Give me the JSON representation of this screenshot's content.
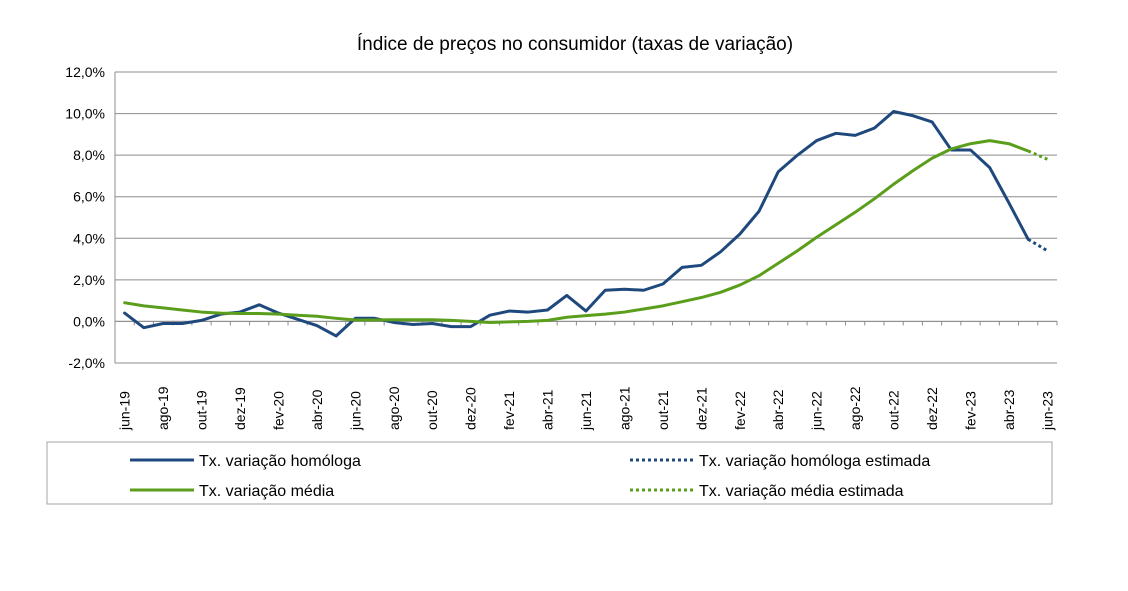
{
  "chart_data": {
    "type": "line",
    "title": "Índice de preços no consumidor  (taxas  de variação)",
    "xlabel": "",
    "ylabel": "",
    "ylim": [
      -2.0,
      12.0
    ],
    "y_ticks": [
      "-2,0%",
      "0,0%",
      "2,0%",
      "4,0%",
      "6,0%",
      "8,0%",
      "10,0%",
      "12,0%"
    ],
    "grid": "horizontal",
    "legend_position": "bottom",
    "x": [
      "jun-19",
      "jul-19",
      "ago-19",
      "set-19",
      "out-19",
      "nov-19",
      "dez-19",
      "jan-20",
      "fev-20",
      "mar-20",
      "abr-20",
      "mai-20",
      "jun-20",
      "jul-20",
      "ago-20",
      "set-20",
      "out-20",
      "nov-20",
      "dez-20",
      "jan-21",
      "fev-21",
      "mar-21",
      "abr-21",
      "mai-21",
      "jun-21",
      "jul-21",
      "ago-21",
      "set-21",
      "out-21",
      "nov-21",
      "dez-21",
      "jan-22",
      "fev-22",
      "mar-22",
      "abr-22",
      "mai-22",
      "jun-22",
      "jul-22",
      "ago-22",
      "set-22",
      "out-22",
      "nov-22",
      "dez-22",
      "jan-23",
      "fev-23",
      "mar-23",
      "abr-23",
      "mai-23",
      "jun-23"
    ],
    "x_tick_labels": [
      "jun-19",
      "ago-19",
      "out-19",
      "dez-19",
      "fev-20",
      "abr-20",
      "jun-20",
      "ago-20",
      "out-20",
      "dez-20",
      "fev-21",
      "abr-21",
      "jun-21",
      "ago-21",
      "out-21",
      "dez-21",
      "fev-22",
      "abr-22",
      "jun-22",
      "ago-22",
      "out-22",
      "dez-22",
      "fev-23",
      "abr-23",
      "jun-23"
    ],
    "series": [
      {
        "name": "Tx. variação homóloga",
        "color": "#1f497d",
        "style": "solid",
        "values": [
          0.4,
          -0.3,
          -0.1,
          -0.1,
          0.05,
          0.35,
          0.45,
          0.8,
          0.4,
          0.1,
          -0.2,
          -0.7,
          0.15,
          0.15,
          -0.05,
          -0.15,
          -0.1,
          -0.25,
          -0.25,
          0.3,
          0.5,
          0.45,
          0.55,
          1.25,
          0.5,
          1.5,
          1.55,
          1.5,
          1.8,
          2.6,
          2.7,
          3.35,
          4.2,
          5.3,
          7.2,
          8.0,
          8.7,
          9.05,
          8.95,
          9.3,
          10.1,
          9.9,
          9.6,
          8.25,
          8.25,
          7.4,
          5.7,
          3.95,
          null
        ]
      },
      {
        "name": "Tx. variação homóloga estimada",
        "color": "#1f497d",
        "style": "dotted",
        "values": [
          null,
          null,
          null,
          null,
          null,
          null,
          null,
          null,
          null,
          null,
          null,
          null,
          null,
          null,
          null,
          null,
          null,
          null,
          null,
          null,
          null,
          null,
          null,
          null,
          null,
          null,
          null,
          null,
          null,
          null,
          null,
          null,
          null,
          null,
          null,
          null,
          null,
          null,
          null,
          null,
          null,
          null,
          null,
          null,
          null,
          null,
          null,
          3.95,
          3.4
        ]
      },
      {
        "name": "Tx. variação média",
        "color": "#5b9e1c",
        "style": "solid",
        "values": [
          0.9,
          0.75,
          0.65,
          0.55,
          0.45,
          0.4,
          0.38,
          0.38,
          0.35,
          0.3,
          0.25,
          0.15,
          0.07,
          0.07,
          0.08,
          0.08,
          0.08,
          0.05,
          0.0,
          -0.05,
          -0.02,
          0.0,
          0.05,
          0.2,
          0.28,
          0.35,
          0.45,
          0.6,
          0.75,
          0.95,
          1.15,
          1.4,
          1.75,
          2.2,
          2.8,
          3.4,
          4.05,
          4.65,
          5.25,
          5.9,
          6.6,
          7.25,
          7.85,
          8.3,
          8.55,
          8.7,
          8.55,
          8.2,
          null
        ]
      },
      {
        "name": "Tx. variação média  estimada",
        "color": "#5b9e1c",
        "style": "dotted",
        "values": [
          null,
          null,
          null,
          null,
          null,
          null,
          null,
          null,
          null,
          null,
          null,
          null,
          null,
          null,
          null,
          null,
          null,
          null,
          null,
          null,
          null,
          null,
          null,
          null,
          null,
          null,
          null,
          null,
          null,
          null,
          null,
          null,
          null,
          null,
          null,
          null,
          null,
          null,
          null,
          null,
          null,
          null,
          null,
          null,
          null,
          null,
          null,
          8.2,
          7.8
        ]
      }
    ]
  }
}
